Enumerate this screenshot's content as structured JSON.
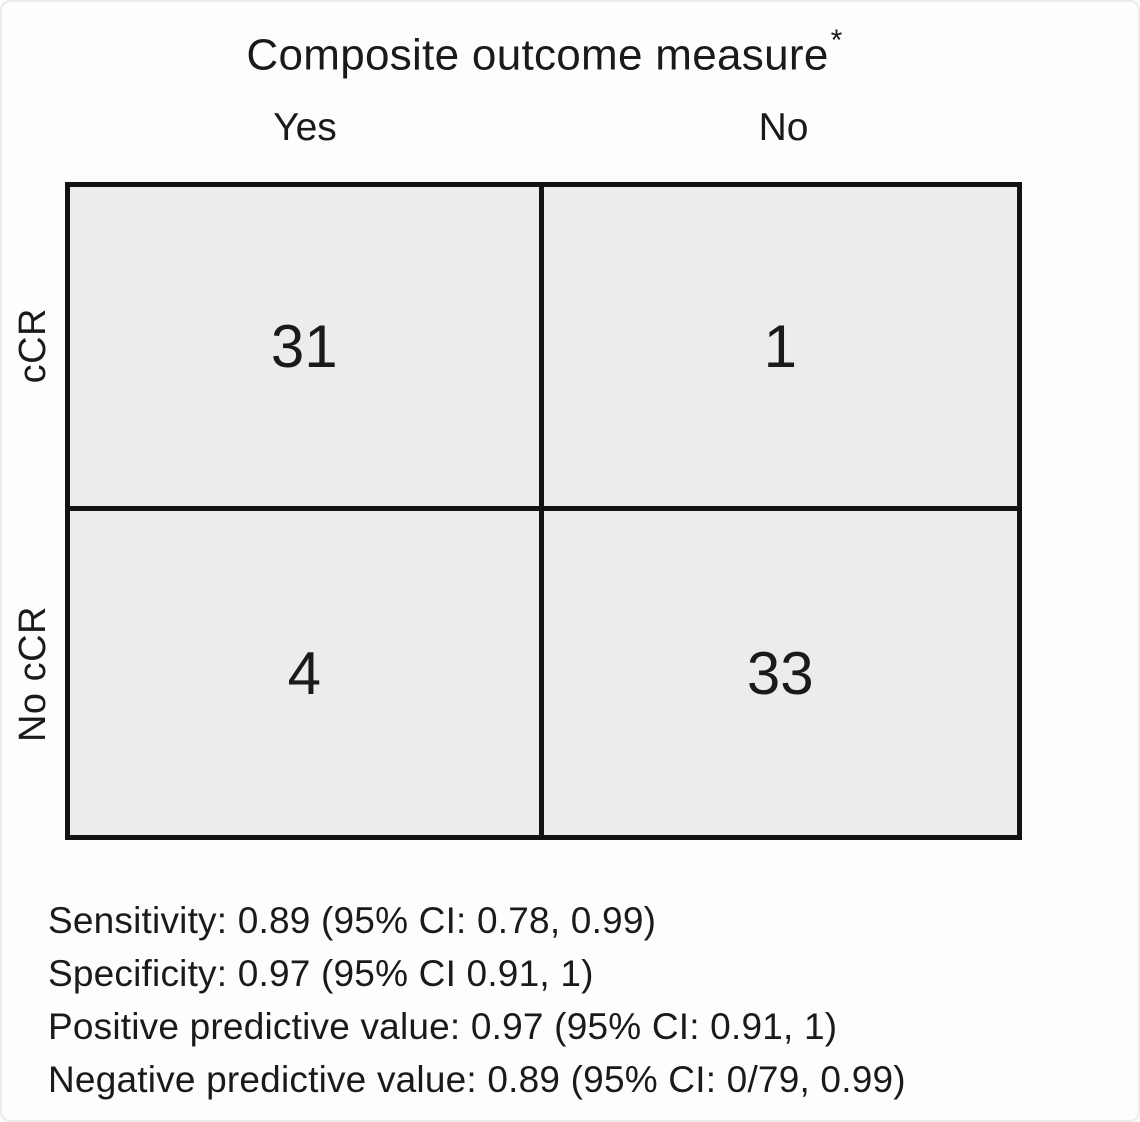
{
  "title": {
    "text": "Composite outcome measure",
    "superscript": "*"
  },
  "chart_data": {
    "type": "table",
    "subtype": "confusion-matrix",
    "title": "Composite outcome measure*",
    "columns": [
      "Yes",
      "No"
    ],
    "rows": [
      "cCR",
      "No cCR"
    ],
    "values": [
      [
        31,
        1
      ],
      [
        4,
        33
      ]
    ],
    "annotations": [
      "Sensitivity: 0.89 (95% CI: 0.78, 0.99)",
      "Specificity: 0.97 (95% CI 0.91, 1)",
      "Positive predictive value: 0.97 (95% CI: 0.91, 1)",
      "Negative predictive value: 0.89 (95% CI: 0/79, 0.99)"
    ],
    "layout": {
      "grid": "2x2",
      "row_labels_rotated": true
    }
  },
  "colors": {
    "cell_fill": "#ececee",
    "grid_line": "#131316",
    "text": "#1a1a1c",
    "background": "#fdfdfe"
  }
}
